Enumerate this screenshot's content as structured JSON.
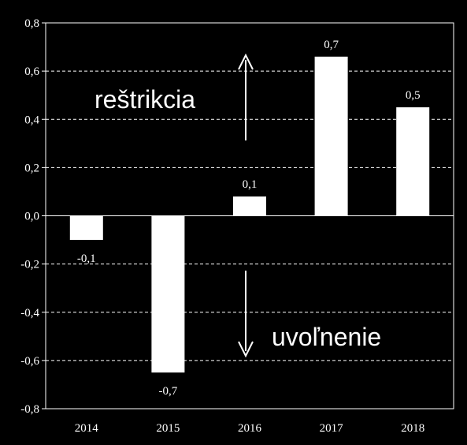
{
  "chart_data": {
    "type": "bar",
    "categories": [
      "2014",
      "2015",
      "2016",
      "2017",
      "2018"
    ],
    "values": [
      -0.1,
      -0.65,
      0.08,
      0.66,
      0.45
    ],
    "data_labels": [
      "-0,1",
      "-0,7",
      "0,1",
      "0,7",
      "0,5"
    ],
    "ylim": [
      -0.8,
      0.8
    ],
    "yticks": [
      0.8,
      0.6,
      0.4,
      0.2,
      0.0,
      -0.2,
      -0.4,
      -0.6,
      -0.8
    ],
    "ytick_labels": [
      "0,8",
      "0,6",
      "0,4",
      "0,2",
      "0,0",
      "-0,2",
      "-0,4",
      "-0,6",
      "-0,8"
    ],
    "grid": "horizontal dashed",
    "title": "",
    "xlabel": "",
    "ylabel": "",
    "bar_color": "#ffffff",
    "background_color": "#000000",
    "annotations": {
      "up": "reštrikcia",
      "down": "uvoľnenie"
    }
  }
}
